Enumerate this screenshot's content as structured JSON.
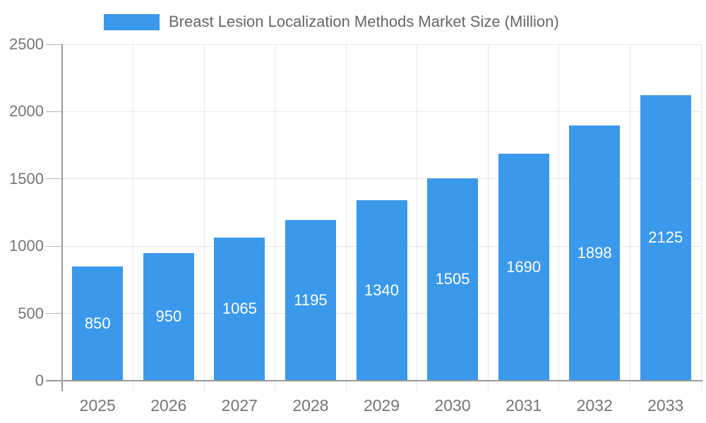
{
  "legend": {
    "series_label": "Breast Lesion Localization Methods Market Size (Million)"
  },
  "chart_data": {
    "type": "bar",
    "title": "Breast Lesion Localization Methods Market Size (Million)",
    "categories": [
      "2025",
      "2026",
      "2027",
      "2028",
      "2029",
      "2030",
      "2031",
      "2032",
      "2033"
    ],
    "values": [
      850,
      950,
      1065,
      1195,
      1340,
      1505,
      1690,
      1898,
      2125
    ],
    "value_labels": [
      "850",
      "950",
      "1065",
      "1195",
      "1340",
      "1505",
      "1690",
      "1898",
      "2125"
    ],
    "xlabel": "",
    "ylabel": "",
    "ylim": [
      0,
      2500
    ],
    "yticks": [
      0,
      500,
      1000,
      1500,
      2000,
      2500
    ],
    "ytick_labels": [
      "0",
      "500",
      "1000",
      "1500",
      "2000",
      "2500"
    ],
    "grid": true,
    "legend_position": "top",
    "bar_width_ratio": 0.72,
    "colors": {
      "bar": "#3b99ec",
      "value_label": "#ffffff",
      "axis_line": "#999999",
      "gridline": "#e6e6e6",
      "y_tick": "#b5b5b5",
      "tick_label": "#757575",
      "title": "#666666",
      "background": "#ffffff"
    }
  }
}
